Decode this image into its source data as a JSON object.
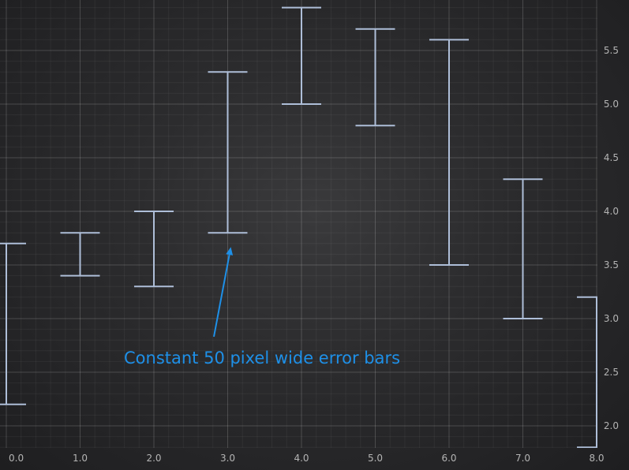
{
  "chart_data": {
    "type": "scatter",
    "subtype": "error-bars",
    "xlim": [
      0.0,
      8.0
    ],
    "ylim": [
      1.8,
      5.9
    ],
    "x_ticks": [
      0.0,
      1.0,
      2.0,
      3.0,
      4.0,
      5.0,
      6.0,
      7.0,
      8.0
    ],
    "x_tick_labels": [
      "0.0",
      "1.0",
      "2.0",
      "3.0",
      "4.0",
      "5.0",
      "6.0",
      "7.0",
      "8.0"
    ],
    "y_ticks": [
      2.0,
      2.5,
      3.0,
      3.5,
      4.0,
      4.5,
      5.0,
      5.5
    ],
    "y_tick_labels": [
      "2.0",
      "2.5",
      "3.0",
      "3.5",
      "4.0",
      "4.5",
      "5.0",
      "5.5"
    ],
    "y_axis_side": "right",
    "grid": true,
    "error_bar_color": "#aebed8",
    "annotation_color": "#1e90e8",
    "series": [
      {
        "points": [
          {
            "x": 0.0,
            "low": 2.2,
            "high": 3.7
          },
          {
            "x": 1.0,
            "low": 3.4,
            "high": 3.8
          },
          {
            "x": 2.0,
            "low": 3.3,
            "high": 4.0
          },
          {
            "x": 3.0,
            "low": 3.8,
            "high": 5.3
          },
          {
            "x": 4.0,
            "low": 5.0,
            "high": 5.9
          },
          {
            "x": 5.0,
            "low": 4.8,
            "high": 5.7
          },
          {
            "x": 6.0,
            "low": 3.5,
            "high": 5.6
          },
          {
            "x": 7.0,
            "low": 3.0,
            "high": 4.3
          },
          {
            "x": 8.0,
            "low": 1.8,
            "high": 3.2
          }
        ]
      }
    ],
    "annotation": {
      "text": "Constant 50 pixel wide error bars",
      "points_to": {
        "x": 3.0,
        "y": 3.8
      }
    }
  }
}
